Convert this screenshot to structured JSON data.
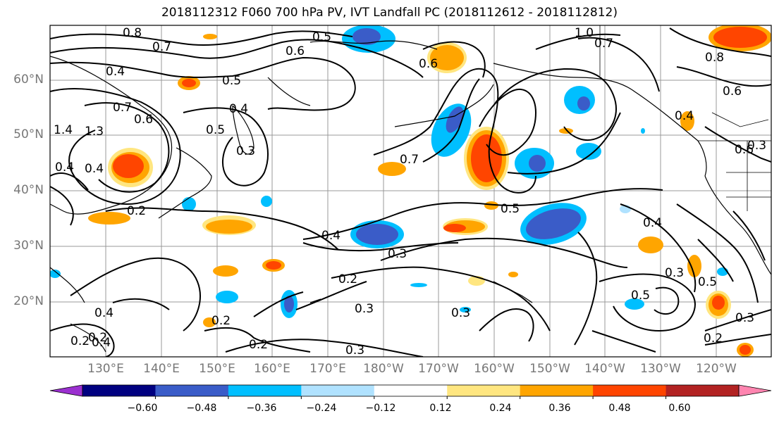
{
  "title": "2018112312 F060 700 hPa PV, IVT Landfall PC (2018112612 - 2018112812)",
  "lat_labels": [
    "60°N",
    "50°N",
    "40°N",
    "30°N",
    "20°N"
  ],
  "lon_labels": [
    "130°E",
    "140°E",
    "150°E",
    "160°E",
    "170°E",
    "180°W",
    "170°W",
    "160°W",
    "150°W",
    "140°W",
    "130°W",
    "120°W"
  ],
  "colorbar": {
    "ticks": [
      "−0.60",
      "−0.48",
      "−0.36",
      "−0.24",
      "−0.12",
      "0.12",
      "0.24",
      "0.36",
      "0.48",
      "0.60"
    ],
    "colors": [
      "#9b30d0",
      "#000080",
      "#3a5cc8",
      "#00bfff",
      "#b0e2ff",
      "#ffffff",
      "#ffe680",
      "#ffa500",
      "#ff4500",
      "#b22222",
      "#ff85b0"
    ]
  },
  "contour_labels": [
    "0.8",
    "0.7",
    "0.5",
    "0.6",
    "1.0",
    "0.7",
    "0.8",
    "0.6",
    "0.4",
    "0.5",
    "0.4",
    "0.7",
    "0.6",
    "0.5",
    "1.4",
    "1.3",
    "0.3",
    "0.4",
    "0.6",
    "0.4",
    "0.3",
    "0.4",
    "0.7",
    "0.5",
    "0.4",
    "0.3",
    "0.3",
    "0.2",
    "0.3",
    "0.4",
    "0.2",
    "0.2",
    "0.3",
    "0.2",
    "0.4",
    "0.6",
    "0.3",
    "0.5",
    "0.5",
    "0.3",
    "0.2",
    "0.2",
    "0.2",
    "0.4"
  ]
}
